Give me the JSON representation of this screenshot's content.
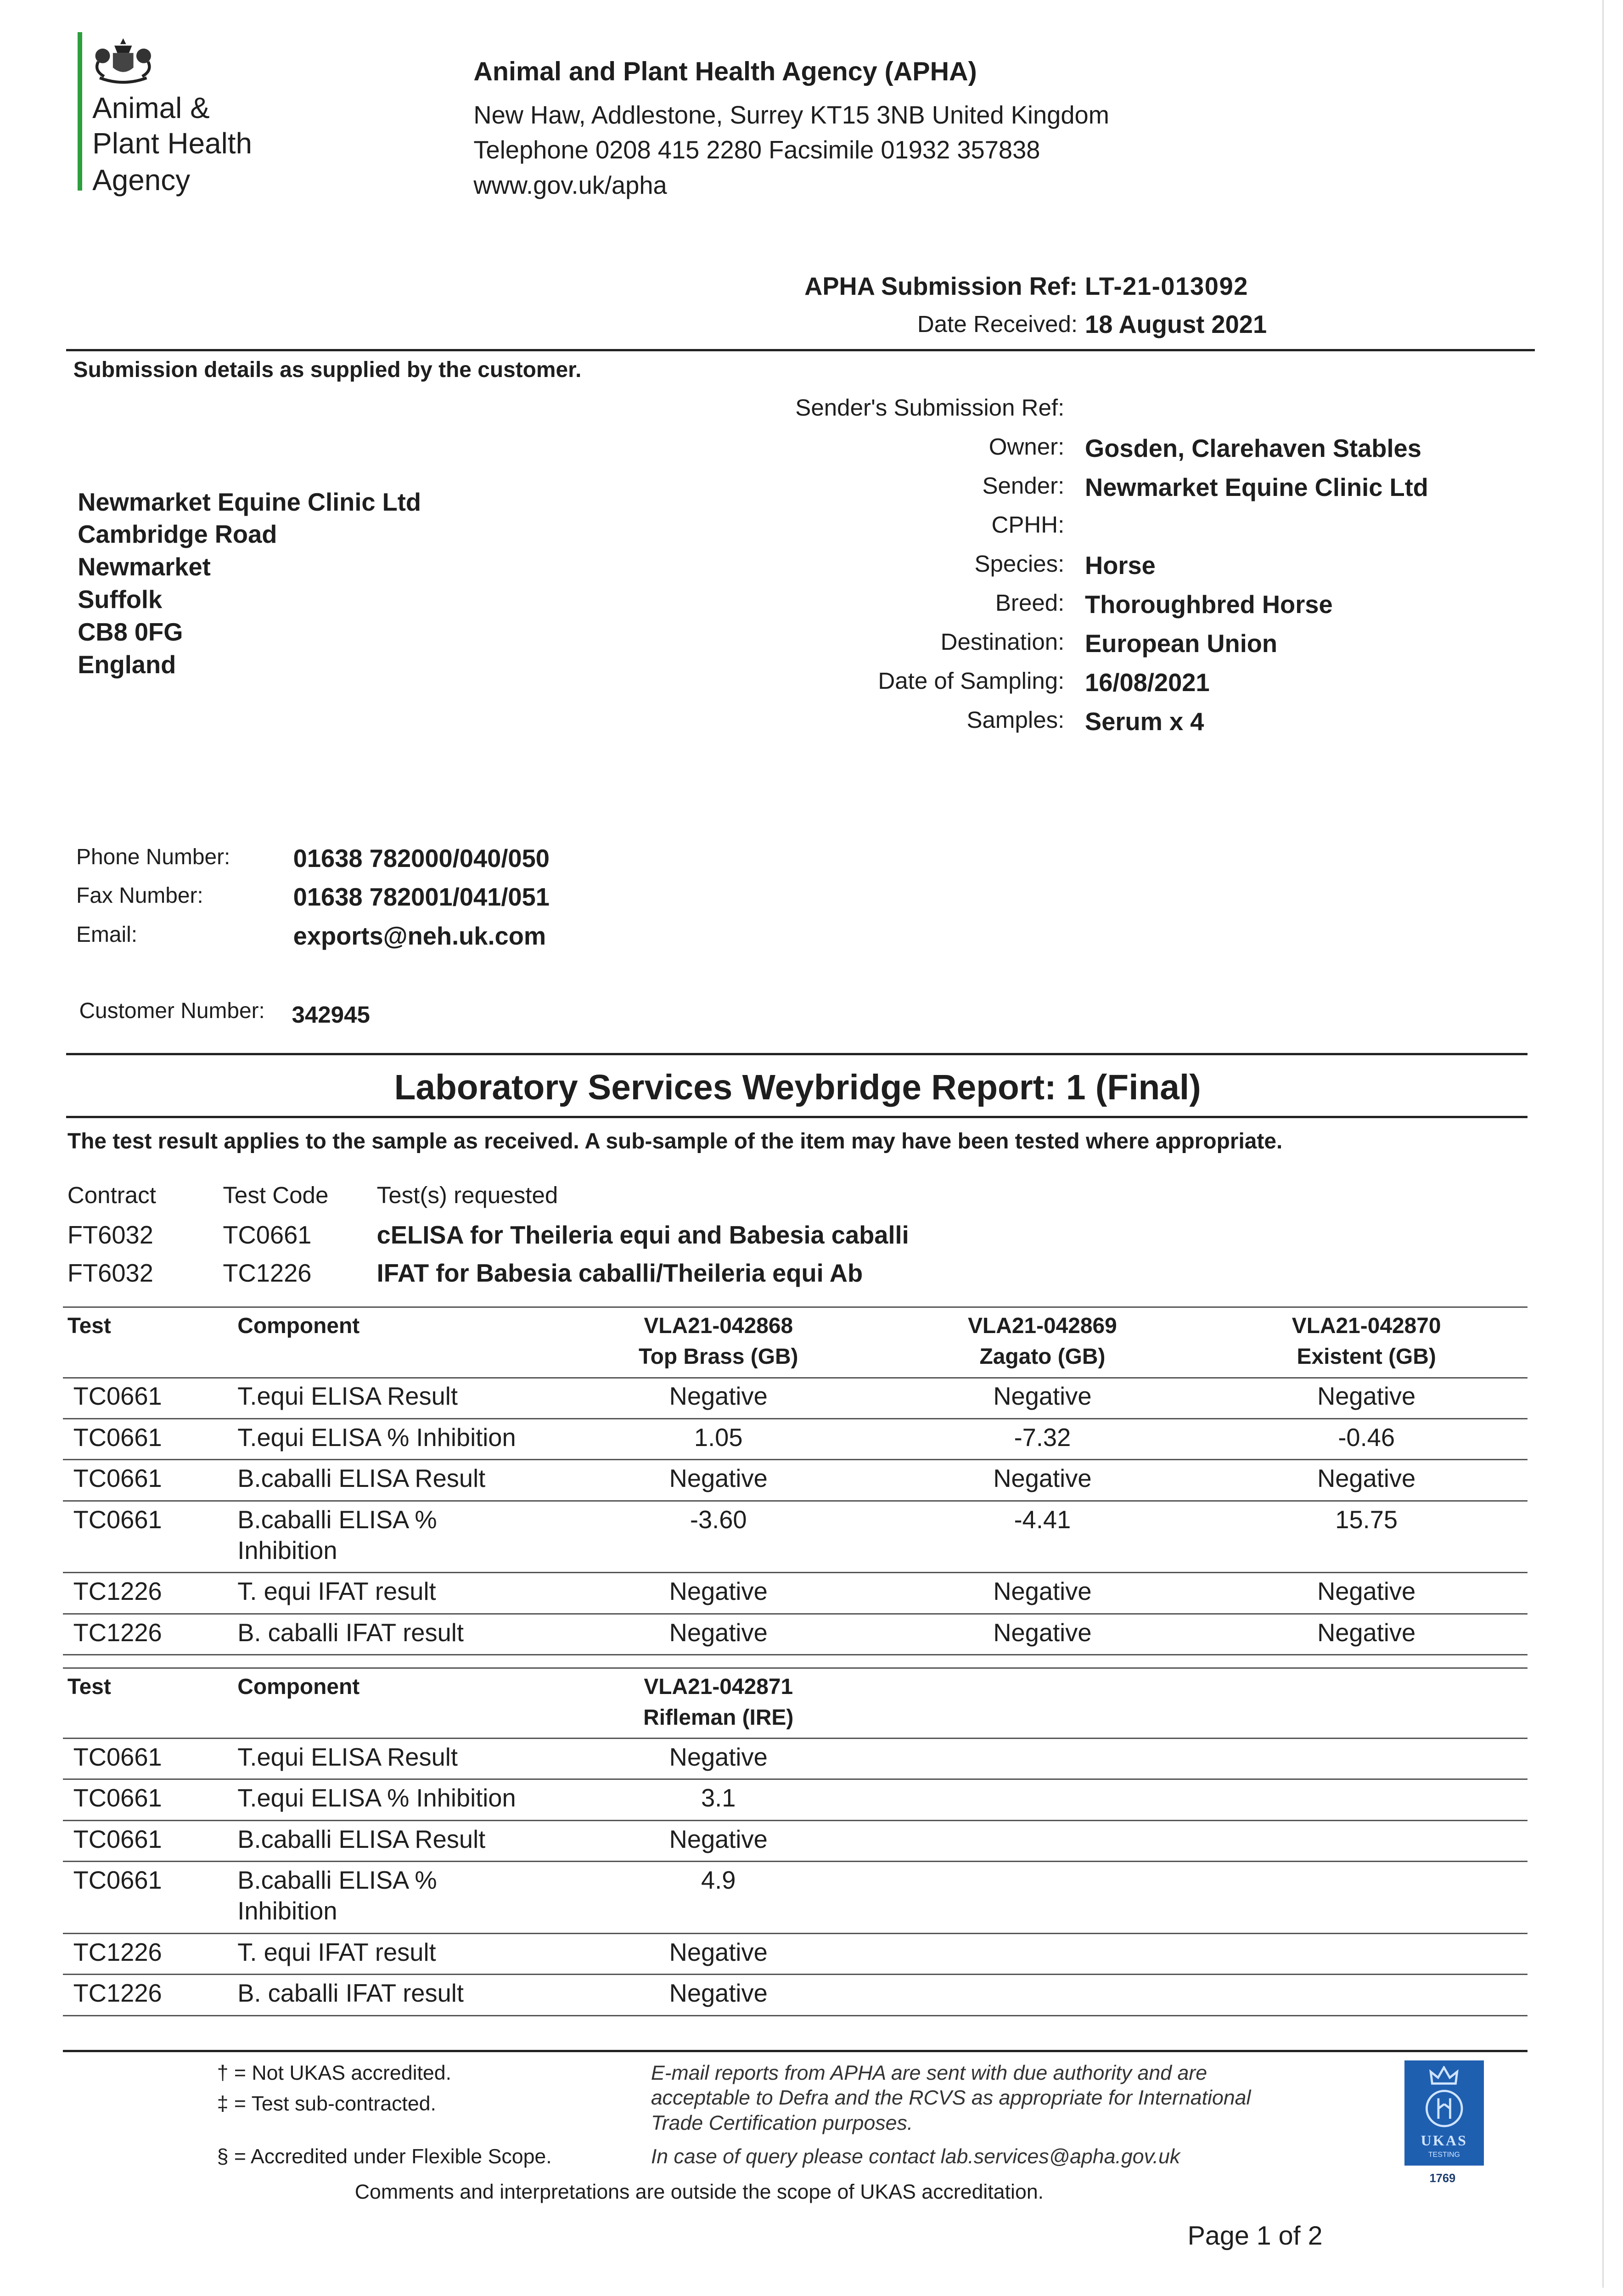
{
  "logo": {
    "line1": "Animal &",
    "line2": "Plant Health",
    "line3": "Agency",
    "accent": "#2e9e3e"
  },
  "header": {
    "agency": "Animal and Plant Health Agency (APHA)",
    "address": "New Haw, Addlestone, Surrey KT15 3NB United Kingdom",
    "phone": "Telephone 0208 415 2280 Facsimile 01932 357838",
    "web": "www.gov.uk/apha"
  },
  "submission": {
    "ref_label": "APHA Submission Ref:",
    "ref_value": "LT-21-013092",
    "date_label": "Date Received:",
    "date_value": "18 August 2021"
  },
  "details_heading": "Submission details as supplied by the customer.",
  "details": [
    {
      "label": "Sender's Submission Ref:",
      "value": ""
    },
    {
      "label": "Owner:",
      "value": "Gosden, Clarehaven Stables"
    },
    {
      "label": "Sender:",
      "value": "Newmarket Equine Clinic Ltd"
    },
    {
      "label": "CPHH:",
      "value": ""
    },
    {
      "label": "Species:",
      "value": "Horse"
    },
    {
      "label": "Breed:",
      "value": "Thoroughbred Horse"
    },
    {
      "label": "Destination:",
      "value": "European Union"
    },
    {
      "label": "Date of Sampling:",
      "value": "16/08/2021"
    },
    {
      "label": "Samples:",
      "value": "Serum x 4"
    }
  ],
  "customer_address": [
    "Newmarket Equine Clinic Ltd",
    "Cambridge Road",
    "Newmarket",
    "Suffolk",
    "CB8 0FG",
    "England"
  ],
  "contact": [
    {
      "label": "Phone Number:",
      "value": "01638 782000/040/050"
    },
    {
      "label": "Fax Number:",
      "value": "01638 782001/041/051"
    },
    {
      "label": "Email:",
      "value": "exports@neh.uk.com"
    }
  ],
  "customer_number": {
    "label": "Customer Number:",
    "value": "342945"
  },
  "report_title": "Laboratory Services Weybridge Report: 1 (Final)",
  "disclaimer": "The test result applies to the sample as received. A sub-sample of the item may have been tested where appropriate.",
  "tests_requested": {
    "headers": [
      "Contract",
      "Test Code",
      "Test(s) requested"
    ],
    "rows": [
      [
        "FT6032",
        "TC0661",
        "cELISA for Theileria equi and Babesia caballi"
      ],
      [
        "FT6032",
        "TC1226",
        "IFAT for Babesia caballi/Theileria equi Ab"
      ]
    ]
  },
  "results_tables": [
    {
      "headers": [
        "Test",
        "Component"
      ],
      "samples": [
        {
          "id": "VLA21-042868",
          "name": "Top Brass (GB)"
        },
        {
          "id": "VLA21-042869",
          "name": "Zagato (GB)"
        },
        {
          "id": "VLA21-042870",
          "name": "Existent (GB)"
        }
      ],
      "rows": [
        {
          "test": "TC0661",
          "component": [
            "T.equi ELISA Result"
          ],
          "values": [
            "Negative",
            "Negative",
            "Negative"
          ]
        },
        {
          "test": "TC0661",
          "component": [
            "T.equi ELISA % Inhibition"
          ],
          "values": [
            "1.05",
            "-7.32",
            "-0.46"
          ]
        },
        {
          "test": "TC0661",
          "component": [
            "B.caballi ELISA Result"
          ],
          "values": [
            "Negative",
            "Negative",
            "Negative"
          ]
        },
        {
          "test": "TC0661",
          "component": [
            "B.caballi ELISA %",
            "Inhibition"
          ],
          "values": [
            "-3.60",
            "-4.41",
            "15.75"
          ]
        },
        {
          "test": "TC1226",
          "component": [
            "T. equi IFAT result"
          ],
          "values": [
            "Negative",
            "Negative",
            "Negative"
          ]
        },
        {
          "test": "TC1226",
          "component": [
            "B. caballi IFAT result"
          ],
          "values": [
            "Negative",
            "Negative",
            "Negative"
          ]
        }
      ]
    },
    {
      "headers": [
        "Test",
        "Component"
      ],
      "samples": [
        {
          "id": "VLA21-042871",
          "name": "Rifleman (IRE)"
        }
      ],
      "rows": [
        {
          "test": "TC0661",
          "component": [
            "T.equi ELISA Result"
          ],
          "values": [
            "Negative"
          ]
        },
        {
          "test": "TC0661",
          "component": [
            "T.equi ELISA % Inhibition"
          ],
          "values": [
            "3.1"
          ]
        },
        {
          "test": "TC0661",
          "component": [
            "B.caballi ELISA Result"
          ],
          "values": [
            "Negative"
          ]
        },
        {
          "test": "TC0661",
          "component": [
            "B.caballi ELISA %",
            "Inhibition"
          ],
          "values": [
            "4.9"
          ]
        },
        {
          "test": "TC1226",
          "component": [
            "T. equi IFAT result"
          ],
          "values": [
            "Negative"
          ]
        },
        {
          "test": "TC1226",
          "component": [
            "B. caballi IFAT result"
          ],
          "values": [
            "Negative"
          ]
        }
      ]
    }
  ],
  "footer": {
    "notes": [
      "† = Not UKAS accredited.",
      "‡ = Test sub-contracted.",
      "§ = Accredited under Flexible Scope."
    ],
    "email_note": [
      "E-mail reports from APHA are sent with due authority and are",
      "acceptable to Defra and the RCVS as appropriate for International",
      "Trade Certification purposes."
    ],
    "query_note": "In case of query please contact lab.services@apha.gov.uk",
    "ukas_comment": "Comments and interpretations are outside the scope of UKAS accreditation.",
    "ukas_logo": {
      "text": "UKAS",
      "sub": "TESTING",
      "number": "1769",
      "color": "#1f5fb0"
    },
    "page": "Page 1 of 2"
  }
}
